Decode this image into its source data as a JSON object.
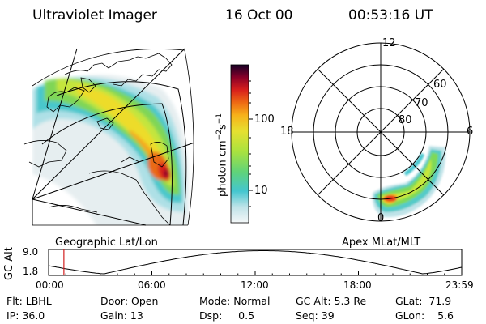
{
  "header": {
    "instrument": "Ultraviolet Imager",
    "date": "16 Oct 00",
    "time": "00:53:16 UT"
  },
  "colorbar": {
    "label_main": "photon cm",
    "label_exp1": "−2",
    "label_mid": "s",
    "label_exp2": "−1",
    "ticks": [
      "100",
      "10"
    ]
  },
  "geo_panel": {
    "label": "Geographic Lat/Lon"
  },
  "polar_panel": {
    "label": "Apex MLat/MLT",
    "mlt_labels": [
      "12",
      "18",
      "6",
      "0"
    ],
    "lat_labels": [
      "60",
      "70",
      "80"
    ]
  },
  "timeline": {
    "axis_label": "GC Alt",
    "y_ticks": [
      "9.0",
      "1.8"
    ],
    "x_ticks": [
      "00:00",
      "06:00",
      "12:00",
      "18:00",
      "23:59"
    ],
    "cursor_fraction": 0.037,
    "colors": {
      "cursor": "#d22020",
      "curve": "#000000"
    }
  },
  "info": {
    "row1": {
      "filter": "Flt: LBHL",
      "door": "Door: Open",
      "mode": "Mode: Normal",
      "gc_alt": "GC Alt: 5.3 Re",
      "glat": "GLat:  71.9"
    },
    "row2": {
      "ip": "IP: 36.0",
      "gain": "Gain: 13",
      "dsp": "Dsp:     0.5",
      "seq": "Seq: 39",
      "glon": "GLon:    5.6"
    }
  },
  "colors": {
    "background": "#ffffff",
    "scale": [
      "#e8eef0",
      "#bfe3e8",
      "#44c6cf",
      "#7ed958",
      "#c8e83a",
      "#f7c21a",
      "#f08a12",
      "#e8341c",
      "#b00020",
      "#5a0030",
      "#1a0030"
    ]
  }
}
